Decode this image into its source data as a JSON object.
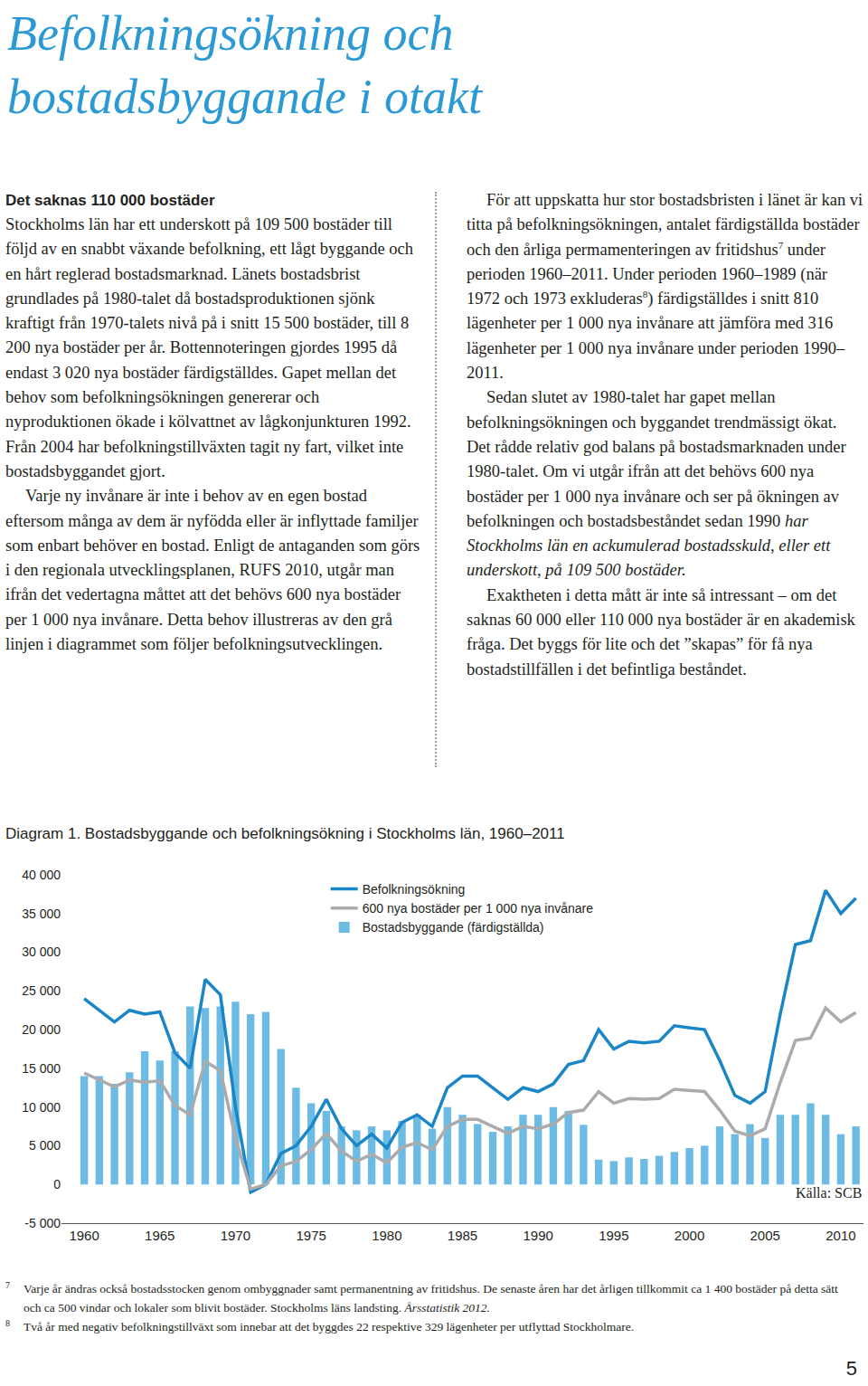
{
  "document": {
    "title": [
      "Befolkningsökning och",
      "bostadsbyggande i otakt"
    ],
    "left_column": {
      "heading": "Det saknas 110 000 bostäder",
      "paragraphs": [
        [
          "Stockholms län har ett underskott på 109 500 bostäder till följd av en snabbt växande befolkning, ett lågt byggande och en hårt reglerad bostadsmarknad. Länets bostadsbrist grundlades på 1980-talet då bostadsproduktionen sjönk kraftigt från 1970-talets nivå på i snitt 15 500 bostäder, till 8 200 nya bostäder per år. Bottennoteringen gjordes 1995 då endast 3 020 nya bostäder färdigställdes. Gapet mellan det behov som befolkningsökningen genererar och nyproduktionen ökade i kölvattnet av lågkonjunkturen 1992. Från 2004 har befolkningstillväxten tagit ny fart, vilket inte bostadsbyggandet gjort."
        ],
        [
          "Varje ny invånare är inte i behov av en egen bostad eftersom många av dem är nyfödda eller är inflyttade familjer som enbart behöver en bostad. Enligt de antaganden som görs i den regionala utvecklingsplanen, RUFS 2010, utgår man ifrån det vedertagna måttet att det behövs 600 nya bostäder per 1 000 nya invånare. Detta behov illustreras av den grå linjen i diagrammet som följer befolkningsutvecklingen."
        ]
      ]
    },
    "right_column": {
      "paragraphs": [
        [
          "För att uppskatta hur stor bostadsbristen i länet är kan vi titta på befolkningsökningen, antalet färdigställda bostäder och den årliga permamenteringen av fritidshus",
          {
            "sup": "7"
          },
          " under perioden 1960–2011. Under perioden 1960–1989 (när 1972 och 1973 exkluderas",
          {
            "sup": "8"
          },
          ") färdigställdes i snitt 810 lägenheter per 1 000 nya invånare att jämföra med 316 lägenheter per 1 000 nya invånare under perioden 1990–2011."
        ],
        [
          "Sedan slutet av 1980-talet har gapet mellan befolkningsökningen och byggandet trendmässigt ökat. Det rådde relativ god balans på bostadsmarknaden under 1980-talet. Om vi utgår ifrån att det behövs 600 nya bostäder per 1 000 nya invånare och ser på ökningen av befolkningen och bostadsbeståndet sedan 1990 ",
          {
            "em": "har Stockholms län en ackumulerad bostadsskuld, eller ett underskott, på 109 500 bostäder."
          }
        ],
        [
          "Exaktheten i detta mått är inte så intressant – om det saknas 60 000 eller 110 000 nya bostäder är en akademisk fråga. Det byggs för lite och det ”skapas” för få nya bostadstillfällen i det befintliga beståndet."
        ]
      ]
    },
    "footnotes": [
      {
        "mark": "7",
        "text": [
          "Varje år ändras också bostadsstocken genom ombyggnader samt permanentning av fritidshus. De senaste åren har det årligen tillkommit ca 1 400 bostäder på detta sätt och ca 500 vindar och lokaler som blivit bostäder. Stockholms läns landsting. ",
          {
            "em": "Årsstatistik 2012."
          }
        ]
      },
      {
        "mark": "8",
        "text": [
          "Två år med negativ befolkningstillväxt som innebar att det byggdes 22 respektive 329 lägenheter per utflyttad Stockholmare."
        ]
      }
    ],
    "page_number": "5"
  },
  "chart_data": {
    "type": "bar",
    "title": "Diagram 1.  Bostadsbyggande och befolkningsökning i Stockholms län, 1960–2011",
    "annotations": [
      "Källa: SCB"
    ],
    "x": [
      1960,
      1961,
      1962,
      1963,
      1964,
      1965,
      1966,
      1967,
      1968,
      1969,
      1970,
      1971,
      1972,
      1973,
      1974,
      1975,
      1976,
      1977,
      1978,
      1979,
      1980,
      1981,
      1982,
      1983,
      1984,
      1985,
      1986,
      1987,
      1988,
      1989,
      1990,
      1991,
      1992,
      1993,
      1994,
      1995,
      1996,
      1997,
      1998,
      1999,
      2000,
      2001,
      2002,
      2003,
      2004,
      2005,
      2006,
      2007,
      2008,
      2009,
      2010,
      2011
    ],
    "series": [
      {
        "name": "Befolkningsökning",
        "type": "line",
        "color": "#1b86c6",
        "values": [
          24000,
          22500,
          21000,
          22500,
          22000,
          22300,
          17000,
          15000,
          26500,
          24500,
          10000,
          -1000,
          0,
          4000,
          5000,
          7500,
          11000,
          7200,
          5000,
          6500,
          4700,
          8000,
          9000,
          7500,
          12500,
          14000,
          14000,
          12500,
          11000,
          12500,
          12000,
          13000,
          15500,
          16000,
          20000,
          17500,
          18500,
          18300,
          18500,
          20500,
          20200,
          20000,
          16000,
          11500,
          10500,
          12000,
          22000,
          31000,
          31500,
          38000,
          35000,
          37000
        ]
      },
      {
        "name": "600 nya bostäder per 1 000 nya invånare",
        "type": "line",
        "color": "#ababab",
        "values": [
          14400,
          13500,
          12600,
          13500,
          13200,
          13400,
          10200,
          9000,
          15900,
          14700,
          6000,
          -600,
          0,
          2400,
          3000,
          4500,
          6600,
          4300,
          3000,
          3900,
          2800,
          4800,
          5400,
          4500,
          7500,
          8400,
          8400,
          7500,
          6600,
          7500,
          7200,
          7800,
          9300,
          9600,
          12000,
          10500,
          11100,
          11000,
          11100,
          12300,
          12100,
          12000,
          9600,
          6900,
          6300,
          7200,
          13200,
          18600,
          18900,
          22800,
          21000,
          22200
        ]
      },
      {
        "name": "Bostadsbyggande (färdigställda)",
        "type": "bar",
        "color": "#6cbbe4",
        "values": [
          14000,
          14000,
          13000,
          14500,
          17200,
          16000,
          17200,
          23000,
          22800,
          23000,
          23600,
          22000,
          22300,
          17500,
          12500,
          10500,
          9500,
          7500,
          7000,
          7500,
          7000,
          8200,
          9000,
          7200,
          10000,
          9000,
          7800,
          6800,
          7500,
          9000,
          9000,
          10000,
          9500,
          7700,
          3200,
          3020,
          3500,
          3300,
          3700,
          4200,
          4700,
          5000,
          7500,
          6500,
          7800,
          6000,
          9000,
          9000,
          10500,
          9000,
          6500,
          7500
        ]
      }
    ],
    "xlim": [
      1958.5,
      2011.5
    ],
    "xticks": [
      1960,
      1965,
      1970,
      1975,
      1980,
      1985,
      1990,
      1995,
      2000,
      2005,
      2010
    ],
    "ylim": [
      -5000,
      40000
    ],
    "yticks": [
      {
        "value": -5000,
        "label": "-5 000"
      },
      0,
      {
        "value": 5000,
        "label": "5 000"
      },
      {
        "value": 10000,
        "label": "10 000"
      },
      {
        "value": 15000,
        "label": "15 000"
      },
      {
        "value": 20000,
        "label": "20 000"
      },
      {
        "value": 25000,
        "label": "25 000"
      },
      {
        "value": 30000,
        "label": "30 000"
      },
      {
        "value": 35000,
        "label": "35 000"
      },
      {
        "value": 40000,
        "label": "40 000"
      }
    ],
    "grid": false,
    "legend": "top"
  }
}
